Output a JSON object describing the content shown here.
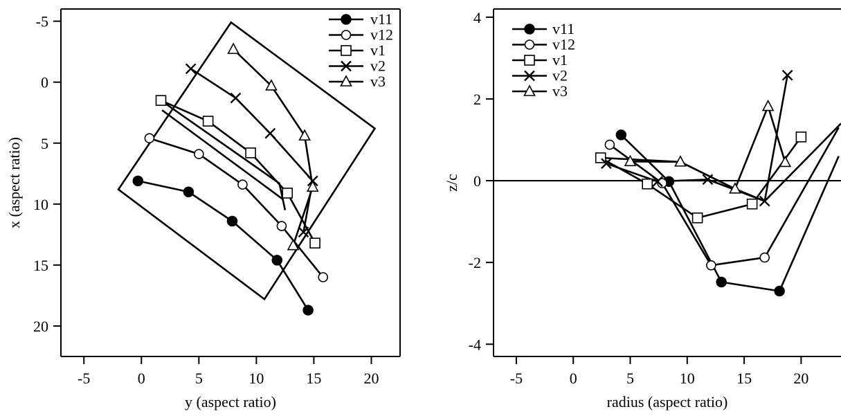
{
  "chart_data": [
    {
      "type": "line",
      "xlabel": "y (aspect ratio)",
      "ylabel": "x (aspect ratio)",
      "xlim": [
        -7,
        22.5
      ],
      "ylim": [
        -6,
        22.5
      ],
      "y_inverted": true,
      "xticks": [
        -5,
        0,
        5,
        10,
        15,
        20
      ],
      "xtick_labels": [
        "-5",
        "0",
        "5",
        "10",
        "15",
        "20"
      ],
      "yticks": [
        -5,
        0,
        5,
        10,
        15,
        20
      ],
      "ytick_labels": [
        "-5",
        "0",
        "5",
        "10",
        "15",
        "20"
      ],
      "grid": false,
      "legend_position": "top-right",
      "series": [
        {
          "name": "v11",
          "marker": "filled-circle",
          "points": [
            [
              -0.3,
              8.1
            ],
            [
              4.1,
              9.0
            ],
            [
              7.9,
              11.4
            ],
            [
              11.8,
              14.6
            ],
            [
              14.5,
              18.7
            ]
          ]
        },
        {
          "name": "v12",
          "marker": "open-circle",
          "points": [
            [
              0.7,
              4.6
            ],
            [
              5.0,
              5.9
            ],
            [
              8.8,
              8.4
            ],
            [
              12.2,
              11.8
            ],
            [
              15.8,
              16.0
            ]
          ]
        },
        {
          "name": "v1",
          "marker": "open-square",
          "points": [
            [
              1.7,
              1.5
            ],
            [
              5.8,
              3.2
            ],
            [
              9.5,
              5.8
            ],
            [
              12.7,
              9.1
            ],
            [
              15.1,
              13.2
            ]
          ]
        },
        {
          "name": "v2",
          "marker": "x",
          "points": [
            [
              4.3,
              -1.1
            ],
            [
              8.2,
              1.3
            ],
            [
              11.2,
              4.2
            ],
            [
              14.9,
              8.1
            ],
            [
              14.1,
              12.3
            ]
          ]
        },
        {
          "name": "v3",
          "marker": "open-triangle",
          "points": [
            [
              8.0,
              -2.7
            ],
            [
              11.3,
              0.3
            ],
            [
              14.2,
              4.4
            ],
            [
              14.9,
              8.6
            ],
            [
              13.2,
              13.4
            ]
          ]
        }
      ],
      "extra_lines": [
        {
          "name": "bounding-box",
          "closed": true,
          "points": [
            [
              -2.0,
              8.8
            ],
            [
              7.8,
              -4.9
            ],
            [
              20.3,
              3.8
            ],
            [
              10.7,
              17.8
            ]
          ]
        },
        {
          "name": "guide-1",
          "closed": false,
          "points": [
            [
              1.7,
              1.5
            ],
            [
              12.0,
              8.3
            ],
            [
              12.5,
              10.5
            ]
          ]
        },
        {
          "name": "guide-2",
          "closed": false,
          "points": [
            [
              1.8,
              2.3
            ],
            [
              12.3,
              9.6
            ]
          ]
        }
      ]
    },
    {
      "type": "line",
      "xlabel": "radius (aspect ratio)",
      "ylabel": "z/c",
      "xlim": [
        -7,
        23.5
      ],
      "ylim": [
        -4.3,
        4.2
      ],
      "xticks": [
        -5,
        0,
        5,
        10,
        15,
        20
      ],
      "xtick_labels": [
        "-5",
        "0",
        "5",
        "10",
        "15",
        "20"
      ],
      "yticks": [
        -4,
        -2,
        0,
        2,
        4
      ],
      "ytick_labels": [
        "-4",
        "-2",
        "0",
        "2",
        "4"
      ],
      "grid": false,
      "legend_position": "top-left",
      "reference_line_y": 0,
      "series": [
        {
          "name": "v11",
          "marker": "filled-circle",
          "points": [
            [
              4.2,
              1.12
            ],
            [
              8.4,
              -0.02
            ],
            [
              13.0,
              -2.48
            ],
            [
              18.1,
              -2.7
            ]
          ]
        },
        {
          "name": "v12",
          "marker": "open-circle",
          "points": [
            [
              3.2,
              0.88
            ],
            [
              7.8,
              -0.06
            ],
            [
              12.1,
              -2.07
            ],
            [
              16.8,
              -1.88
            ]
          ]
        },
        {
          "name": "v1",
          "marker": "open-square",
          "points": [
            [
              2.4,
              0.56
            ],
            [
              6.5,
              -0.08
            ],
            [
              10.9,
              -0.91
            ],
            [
              15.7,
              -0.57
            ],
            [
              20.0,
              1.07
            ]
          ]
        },
        {
          "name": "v2",
          "marker": "x",
          "points": [
            [
              2.9,
              0.42
            ],
            [
              7.4,
              -0.02
            ],
            [
              11.8,
              0.03
            ],
            [
              16.8,
              -0.5
            ],
            [
              18.8,
              2.58
            ]
          ]
        },
        {
          "name": "v3",
          "marker": "open-triangle",
          "points": [
            [
              5.0,
              0.47
            ],
            [
              9.4,
              0.46
            ],
            [
              14.2,
              -0.2
            ],
            [
              17.1,
              1.82
            ],
            [
              18.6,
              0.45
            ]
          ]
        }
      ],
      "extra_lines": [
        {
          "name": "curve-a",
          "closed": false,
          "points": [
            [
              14.2,
              -0.2
            ],
            [
              16.8,
              -0.5
            ],
            [
              23.5,
              1.4
            ]
          ]
        },
        {
          "name": "curve-b",
          "closed": false,
          "points": [
            [
              18.1,
              -2.7
            ],
            [
              23.3,
              0.6
            ]
          ]
        },
        {
          "name": "curve-c",
          "closed": false,
          "points": [
            [
              16.8,
              -1.88
            ],
            [
              23.3,
              1.3
            ]
          ]
        },
        {
          "name": "curve-d",
          "closed": false,
          "points": [
            [
              2.4,
              0.56
            ],
            [
              9.4,
              0.46
            ],
            [
              14.2,
              -0.2
            ]
          ]
        }
      ]
    }
  ]
}
